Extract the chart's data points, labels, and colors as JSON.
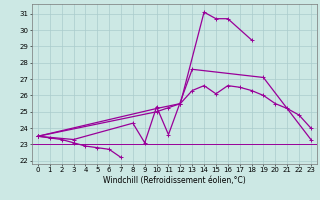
{
  "xlabel": "Windchill (Refroidissement éolien,°C)",
  "bg_color": "#cce8e4",
  "grid_color": "#aacccc",
  "line_color": "#990099",
  "s1_x": [
    0,
    1,
    2,
    3,
    4,
    5,
    6,
    7
  ],
  "s1_y": [
    23.5,
    23.4,
    23.3,
    23.1,
    22.9,
    22.8,
    22.7,
    22.2
  ],
  "s2_x": [
    0,
    3,
    8,
    9,
    10,
    11,
    13,
    19,
    23
  ],
  "s2_y": [
    23.5,
    23.3,
    24.3,
    23.1,
    25.3,
    23.6,
    27.6,
    27.1,
    23.3
  ],
  "s3_x": [
    0,
    10,
    12,
    14,
    15,
    16,
    18
  ],
  "s3_y": [
    23.5,
    25.2,
    25.5,
    31.1,
    30.7,
    30.7,
    29.4
  ],
  "s4_x": [
    0,
    10,
    11,
    12,
    13,
    14,
    15,
    16,
    17,
    18,
    19,
    20,
    21,
    22,
    23
  ],
  "s4_y": [
    23.5,
    25.0,
    25.25,
    25.5,
    26.3,
    26.6,
    26.1,
    26.6,
    26.5,
    26.3,
    26.0,
    25.5,
    25.2,
    24.8,
    24.0
  ],
  "hline_y": 23.0,
  "xlim": [
    -0.5,
    23.5
  ],
  "ylim": [
    21.8,
    31.6
  ],
  "yticks": [
    22,
    23,
    24,
    25,
    26,
    27,
    28,
    29,
    30,
    31
  ],
  "xticks": [
    0,
    1,
    2,
    3,
    4,
    5,
    6,
    7,
    8,
    9,
    10,
    11,
    12,
    13,
    14,
    15,
    16,
    17,
    18,
    19,
    20,
    21,
    22,
    23
  ],
  "tick_fontsize": 5.0,
  "xlabel_fontsize": 5.5,
  "line_width": 0.9,
  "marker_size": 2.5,
  "marker_ew": 0.7
}
